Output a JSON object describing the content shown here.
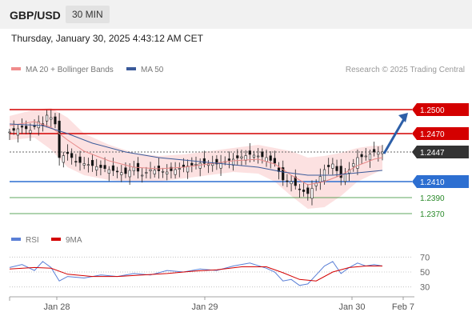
{
  "header": {
    "pair": "GBP/USD",
    "timeframe": "30 MIN",
    "timestamp": "Thursday, January 30, 2025 4:43:12 AM CET"
  },
  "chart_data": {
    "type": "candlestick",
    "title": "GBP/USD",
    "legend": [
      {
        "name": "MA 20 + Bollinger Bands",
        "color": "#f08c8c"
      },
      {
        "name": "MA 50",
        "color": "#3a5a9a"
      }
    ],
    "credit": "Research © 2025 Trading Central",
    "price_range": [
      1.2355,
      1.2515
    ],
    "x_labels": [
      "Jan 28",
      "Jan 29",
      "Jan 30",
      "Feb 7"
    ],
    "levels": [
      {
        "value": 1.25,
        "label": "1.2500",
        "kind": "resistance",
        "color": "#d40000"
      },
      {
        "value": 1.247,
        "label": "1.2470",
        "kind": "resistance",
        "color": "#d40000"
      },
      {
        "value": 1.2447,
        "label": "1.2447",
        "kind": "last",
        "color": "#333333"
      },
      {
        "value": 1.241,
        "label": "1.2410",
        "kind": "support",
        "color": "#2d6fd1"
      },
      {
        "value": 1.239,
        "label": "1.2390",
        "kind": "target",
        "color": "#2a8a2a"
      },
      {
        "value": 1.237,
        "label": "1.2370",
        "kind": "target",
        "color": "#2a8a2a"
      }
    ],
    "forecast_arrow": {
      "from": 1.2447,
      "to": 1.25,
      "direction": "up"
    },
    "price_path": [
      [
        0,
        1.2472
      ],
      [
        3,
        1.2478
      ],
      [
        5,
        1.2474
      ],
      [
        7,
        1.2485
      ],
      [
        8,
        1.248
      ],
      [
        9,
        1.2493
      ],
      [
        10,
        1.249
      ],
      [
        11,
        1.2482
      ],
      [
        12,
        1.244
      ],
      [
        14,
        1.2445
      ],
      [
        16,
        1.2435
      ],
      [
        20,
        1.243
      ],
      [
        24,
        1.2425
      ],
      [
        28,
        1.242
      ],
      [
        30,
        1.2428
      ],
      [
        32,
        1.2418
      ],
      [
        34,
        1.2425
      ],
      [
        38,
        1.2422
      ],
      [
        42,
        1.2428
      ],
      [
        46,
        1.2433
      ],
      [
        50,
        1.2432
      ],
      [
        54,
        1.2438
      ],
      [
        58,
        1.2444
      ],
      [
        62,
        1.244
      ],
      [
        64,
        1.2433
      ],
      [
        66,
        1.2412
      ],
      [
        68,
        1.241
      ],
      [
        70,
        1.24
      ],
      [
        72,
        1.2395
      ],
      [
        74,
        1.2408
      ],
      [
        76,
        1.2425
      ],
      [
        78,
        1.2432
      ],
      [
        80,
        1.2415
      ],
      [
        82,
        1.2425
      ],
      [
        84,
        1.244
      ],
      [
        86,
        1.2442
      ],
      [
        88,
        1.2447
      ],
      [
        90,
        1.2447
      ]
    ],
    "ma20": [
      [
        0,
        1.248
      ],
      [
        6,
        1.2485
      ],
      [
        10,
        1.2478
      ],
      [
        14,
        1.2462
      ],
      [
        18,
        1.2448
      ],
      [
        24,
        1.2436
      ],
      [
        30,
        1.2428
      ],
      [
        36,
        1.2426
      ],
      [
        42,
        1.2428
      ],
      [
        48,
        1.2432
      ],
      [
        54,
        1.2436
      ],
      [
        60,
        1.2438
      ],
      [
        64,
        1.2432
      ],
      [
        68,
        1.2418
      ],
      [
        72,
        1.2406
      ],
      [
        76,
        1.241
      ],
      [
        80,
        1.2418
      ],
      [
        84,
        1.243
      ],
      [
        88,
        1.2438
      ],
      [
        90,
        1.244
      ]
    ],
    "bollinger_upper": [
      [
        0,
        1.2492
      ],
      [
        6,
        1.25
      ],
      [
        10,
        1.2502
      ],
      [
        14,
        1.249
      ],
      [
        18,
        1.247
      ],
      [
        24,
        1.2456
      ],
      [
        30,
        1.2446
      ],
      [
        36,
        1.2442
      ],
      [
        42,
        1.2444
      ],
      [
        48,
        1.2448
      ],
      [
        54,
        1.2452
      ],
      [
        60,
        1.2456
      ],
      [
        64,
        1.2452
      ],
      [
        68,
        1.2448
      ],
      [
        72,
        1.244
      ],
      [
        76,
        1.2442
      ],
      [
        80,
        1.2446
      ],
      [
        84,
        1.2452
      ],
      [
        88,
        1.2455
      ],
      [
        90,
        1.2455
      ]
    ],
    "bollinger_lower": [
      [
        0,
        1.2462
      ],
      [
        6,
        1.2465
      ],
      [
        10,
        1.245
      ],
      [
        14,
        1.2428
      ],
      [
        18,
        1.2418
      ],
      [
        24,
        1.2412
      ],
      [
        30,
        1.241
      ],
      [
        36,
        1.241
      ],
      [
        42,
        1.2414
      ],
      [
        48,
        1.2418
      ],
      [
        54,
        1.2422
      ],
      [
        60,
        1.242
      ],
      [
        64,
        1.241
      ],
      [
        68,
        1.2392
      ],
      [
        72,
        1.2376
      ],
      [
        76,
        1.2378
      ],
      [
        80,
        1.2392
      ],
      [
        84,
        1.241
      ],
      [
        88,
        1.242
      ],
      [
        90,
        1.2425
      ]
    ],
    "ma50": [
      [
        0,
        1.2482
      ],
      [
        8,
        1.248
      ],
      [
        14,
        1.247
      ],
      [
        20,
        1.2458
      ],
      [
        28,
        1.2447
      ],
      [
        36,
        1.244
      ],
      [
        44,
        1.2436
      ],
      [
        52,
        1.2432
      ],
      [
        60,
        1.2428
      ],
      [
        66,
        1.2422
      ],
      [
        72,
        1.2418
      ],
      [
        78,
        1.2418
      ],
      [
        84,
        1.2421
      ],
      [
        90,
        1.2424
      ]
    ],
    "rsi": {
      "legend": [
        {
          "name": "RSI",
          "color": "#5a7fd6"
        },
        {
          "name": "9MA",
          "color": "#d40000"
        }
      ],
      "range": [
        20,
        80
      ],
      "ticks": [
        70,
        50,
        30
      ],
      "rsi_values": [
        [
          0,
          56
        ],
        [
          3,
          60
        ],
        [
          6,
          52
        ],
        [
          8,
          64
        ],
        [
          10,
          56
        ],
        [
          12,
          38
        ],
        [
          14,
          44
        ],
        [
          18,
          42
        ],
        [
          22,
          46
        ],
        [
          26,
          44
        ],
        [
          30,
          48
        ],
        [
          34,
          46
        ],
        [
          38,
          52
        ],
        [
          42,
          50
        ],
        [
          46,
          54
        ],
        [
          50,
          52
        ],
        [
          54,
          58
        ],
        [
          58,
          62
        ],
        [
          62,
          55
        ],
        [
          64,
          50
        ],
        [
          66,
          38
        ],
        [
          68,
          40
        ],
        [
          70,
          32
        ],
        [
          72,
          34
        ],
        [
          74,
          46
        ],
        [
          76,
          58
        ],
        [
          78,
          64
        ],
        [
          80,
          48
        ],
        [
          82,
          56
        ],
        [
          84,
          62
        ],
        [
          86,
          58
        ],
        [
          88,
          60
        ],
        [
          90,
          58
        ]
      ],
      "ma9_values": [
        [
          0,
          54
        ],
        [
          6,
          56
        ],
        [
          10,
          55
        ],
        [
          14,
          47
        ],
        [
          20,
          44
        ],
        [
          26,
          44
        ],
        [
          32,
          46
        ],
        [
          38,
          48
        ],
        [
          44,
          51
        ],
        [
          50,
          53
        ],
        [
          56,
          57
        ],
        [
          62,
          57
        ],
        [
          66,
          49
        ],
        [
          70,
          40
        ],
        [
          74,
          38
        ],
        [
          78,
          50
        ],
        [
          82,
          56
        ],
        [
          86,
          58
        ],
        [
          90,
          58
        ]
      ]
    }
  }
}
